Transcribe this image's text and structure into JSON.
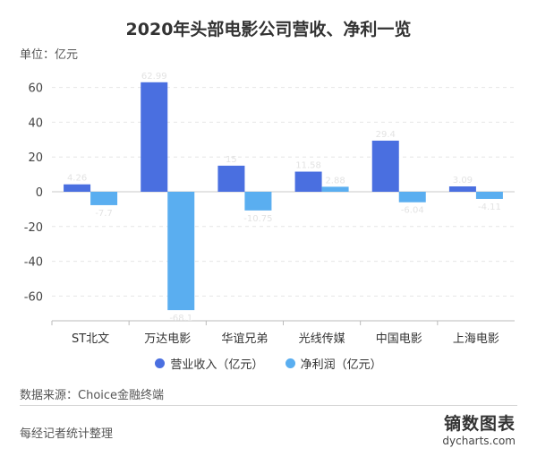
{
  "title": "2020年头部电影公司营收、净利一览",
  "unit_label": "单位：亿元",
  "source": "数据来源：Choice金融终端",
  "editor": "每经记者统计整理",
  "brand": {
    "name": "镝数图表",
    "url": "dycharts.com"
  },
  "colors": {
    "revenue": "#4a6fe0",
    "net_profit": "#5aaef0"
  },
  "chart_data": {
    "type": "bar",
    "categories": [
      "ST北文",
      "万达电影",
      "华谊兄弟",
      "光线传媒",
      "中国电影",
      "上海电影"
    ],
    "series": [
      {
        "name": "营业收入（亿元）",
        "values": [
          4.26,
          62.99,
          15.0,
          11.58,
          29.4,
          3.09
        ]
      },
      {
        "name": "净利润（亿元）",
        "values": [
          -7.7,
          -68.1,
          -10.75,
          2.88,
          -6.04,
          -4.11
        ]
      }
    ],
    "data_labels": {
      "revenue": [
        "4.26",
        "62.99",
        "15",
        "11.58",
        "29.4",
        "3.09"
      ],
      "net_profit": [
        "-7.7",
        "-68.1",
        "-10.75",
        "2.88",
        "-6.04",
        "-4.11"
      ]
    },
    "ylim": [
      -70,
      70
    ],
    "yticks": [
      60,
      40,
      20,
      0,
      -20,
      -40,
      -60
    ],
    "grid": true,
    "legend_position": "bottom"
  }
}
